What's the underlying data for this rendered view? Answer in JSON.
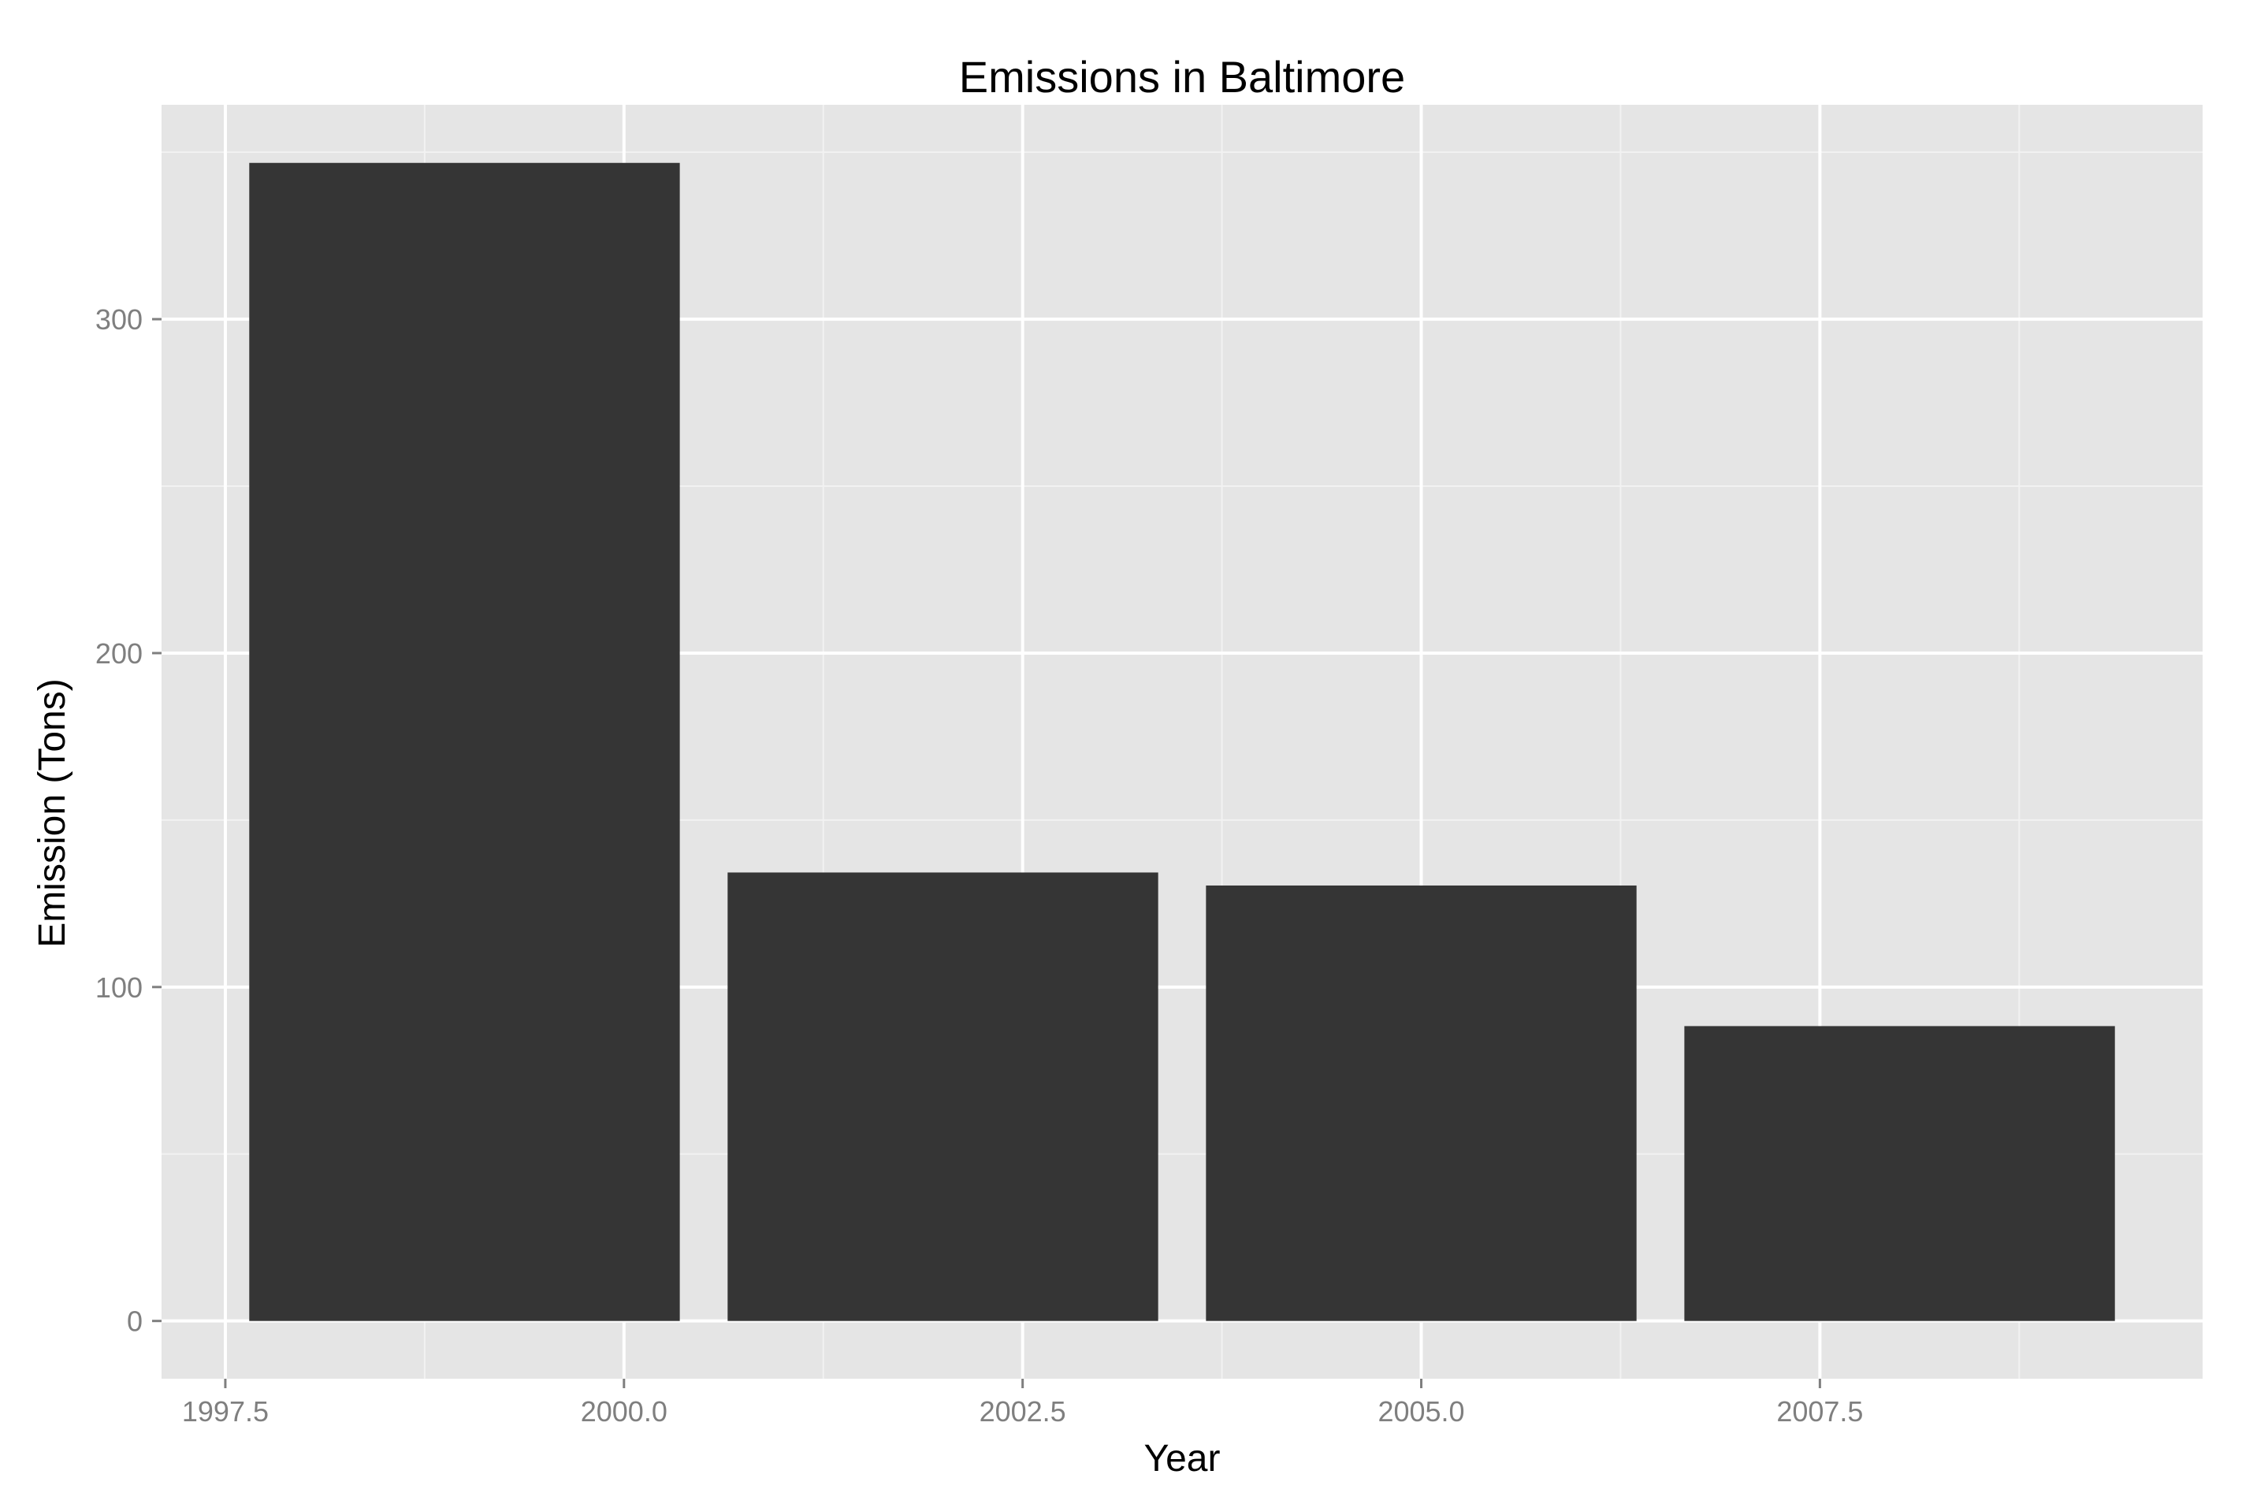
{
  "chart_data": {
    "type": "bar",
    "title": "Emissions in Baltimore",
    "xlabel": "Year",
    "ylabel": "Emission (Tons)",
    "x": [
      1999,
      2002,
      2005,
      2008
    ],
    "bar_width_years": 2.7,
    "values": [
      346.8,
      134.3,
      130.4,
      88.3
    ],
    "xlim": [
      1997.1,
      2009.9
    ],
    "ylim": [
      -17.3,
      364.2
    ],
    "x_ticks": [
      1997.5,
      2000,
      2002.5,
      2005,
      2007.5
    ],
    "x_tick_labels": [
      "1997.5",
      "2000.0",
      "2002.5",
      "2005.0",
      "2007.5"
    ],
    "y_ticks": [
      0,
      100,
      200,
      300
    ],
    "y_tick_labels": [
      "0",
      "100",
      "200",
      "300"
    ],
    "grid": true,
    "legend": "none",
    "colors": {
      "panel_background": "#e5e5e5",
      "major_grid": "#ffffff",
      "minor_grid": "#f2f2f2",
      "bar_fill": "#353535",
      "tick_text": "#7f7f7f",
      "tick_mark": "#7f7f7f",
      "title_text": "#000000"
    }
  }
}
